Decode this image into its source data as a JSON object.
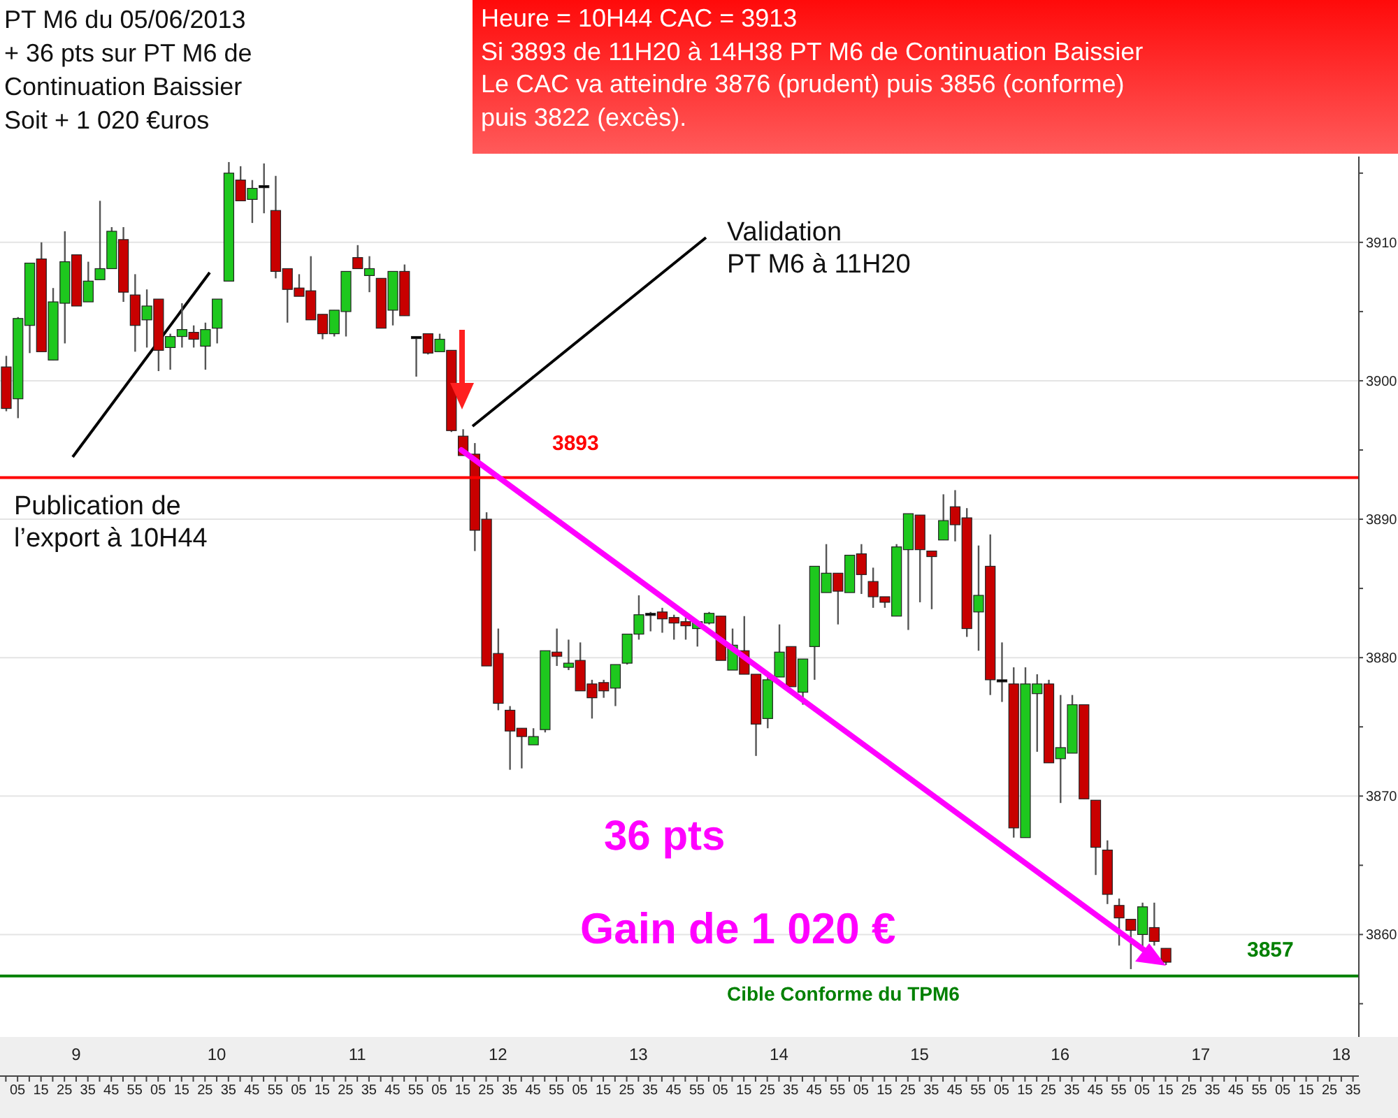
{
  "chart_data": {
    "type": "candlestick",
    "title": "PT M6 du 05/06/2013\n+ 36 pts sur PT M6 de\nContinuation Baissier\nSoit +  1 020 €uros",
    "subtitle": "Heure = 10H44  CAC = 3913\nSi 3893 de 11H20 à 14H38 PT M6 de Continuation Baissier\nLe CAC va atteindre 3876 (prudent) puis 3856 (conforme)\npuis 3822 (excès).",
    "categories": [
      null,
      "05",
      null,
      "15",
      null,
      "25",
      null,
      "35",
      null,
      "45",
      null,
      "55",
      null,
      "05",
      null,
      "15",
      null,
      "25",
      null,
      "35",
      null,
      "45",
      null,
      "55",
      null,
      "05",
      null,
      "15",
      null,
      "25",
      null,
      "35",
      null,
      "45",
      null,
      "55",
      null,
      "05",
      null,
      "15",
      null,
      "25",
      null,
      "35",
      null,
      "45",
      null,
      "55",
      null,
      "05",
      null,
      "15",
      null,
      "25",
      null,
      "35",
      null,
      "45",
      null,
      "55",
      null,
      "05",
      null,
      "15",
      null,
      "25",
      null,
      "35",
      null,
      "45",
      null,
      "55",
      null,
      "05",
      null,
      "15",
      null,
      "25",
      null,
      "35",
      null,
      "45",
      null,
      "55",
      null,
      "05",
      null,
      "15",
      null,
      "25",
      null,
      "35",
      null,
      "45",
      null,
      "55",
      null,
      "05",
      null,
      "15",
      null,
      "25",
      null,
      "35",
      null,
      "45",
      null,
      "55",
      null,
      "05",
      null,
      "15",
      null,
      "25",
      null,
      "35"
    ],
    "ohlc": [
      [
        3901.0,
        3901.8,
        3897.8,
        3898.0
      ],
      [
        3898.7,
        3904.6,
        3897.3,
        3904.5
      ],
      [
        3904.0,
        3908.5,
        3902.0,
        3908.5
      ],
      [
        3908.8,
        3910.0,
        3902.1,
        3902.1
      ],
      [
        3901.5,
        3906.7,
        3901.5,
        3905.7
      ],
      [
        3905.6,
        3910.8,
        3902.7,
        3908.6
      ],
      [
        3909.1,
        3909.1,
        3905.4,
        3905.4
      ],
      [
        3905.7,
        3908.6,
        3905.7,
        3907.2
      ],
      [
        3907.3,
        3913.0,
        3907.3,
        3908.1
      ],
      [
        3908.1,
        3911.1,
        3908.1,
        3910.8
      ],
      [
        3910.2,
        3911.1,
        3905.7,
        3906.4
      ],
      [
        3906.2,
        3907.7,
        3902.1,
        3904.0
      ],
      [
        3904.4,
        3906.6,
        3902.4,
        3905.4
      ],
      [
        3905.9,
        3905.9,
        3900.7,
        3902.2
      ],
      [
        3902.4,
        3903.4,
        3900.8,
        3903.2
      ],
      [
        3903.2,
        3905.6,
        3902.4,
        3903.7
      ],
      [
        3903.5,
        3904.0,
        3902.4,
        3903.0
      ],
      [
        3902.5,
        3904.2,
        3900.8,
        3903.7
      ],
      [
        3903.8,
        3905.9,
        3902.7,
        3905.9
      ],
      [
        3907.2,
        3915.8,
        3907.2,
        3915.0
      ],
      [
        3914.5,
        3915.5,
        3913.0,
        3913.0
      ],
      [
        3913.1,
        3914.5,
        3911.4,
        3913.9
      ],
      [
        3914.1,
        3915.7,
        3912.1,
        3914.1
      ],
      [
        3912.3,
        3914.8,
        3907.4,
        3907.9
      ],
      [
        3908.1,
        3908.1,
        3904.2,
        3906.6
      ],
      [
        3906.7,
        3907.7,
        3906.1,
        3906.1
      ],
      [
        3906.5,
        3909.0,
        3904.4,
        3904.4
      ],
      [
        3904.8,
        3904.8,
        3903.0,
        3903.4
      ],
      [
        3903.4,
        3905.1,
        3903.2,
        3905.1
      ],
      [
        3905.0,
        3907.9,
        3903.2,
        3907.9
      ],
      [
        3908.9,
        3909.8,
        3908.1,
        3908.1
      ],
      [
        3907.6,
        3909.0,
        3906.4,
        3908.1
      ],
      [
        3907.4,
        3907.4,
        3903.8,
        3903.8
      ],
      [
        3905.1,
        3907.9,
        3904.0,
        3907.9
      ],
      [
        3907.9,
        3908.4,
        3904.7,
        3904.7
      ],
      [
        3903.2,
        3903.2,
        3900.3,
        3903.2
      ],
      [
        3903.4,
        3903.4,
        3901.9,
        3902.0
      ],
      [
        3902.1,
        3903.4,
        3902.1,
        3903.0
      ],
      [
        3902.2,
        3902.2,
        3896.3,
        3896.4
      ],
      [
        3896.0,
        3896.5,
        3894.6,
        3894.6
      ],
      [
        3894.7,
        3895.5,
        3887.7,
        3889.2
      ],
      [
        3890.0,
        3890.5,
        3879.4,
        3879.4
      ],
      [
        3880.3,
        3882.1,
        3876.2,
        3876.7
      ],
      [
        3876.2,
        3876.5,
        3871.9,
        3874.7
      ],
      [
        3874.9,
        3874.9,
        3872.0,
        3874.3
      ],
      [
        3873.7,
        3874.9,
        3873.7,
        3874.3
      ],
      [
        3874.8,
        3880.5,
        3874.6,
        3880.5
      ],
      [
        3880.4,
        3882.1,
        3879.4,
        3880.1
      ],
      [
        3879.3,
        3881.3,
        3879.1,
        3879.6
      ],
      [
        3879.8,
        3881.1,
        3877.6,
        3877.6
      ],
      [
        3878.1,
        3878.4,
        3875.6,
        3877.1
      ],
      [
        3878.2,
        3878.4,
        3877.1,
        3877.6
      ],
      [
        3877.8,
        3879.5,
        3876.5,
        3879.5
      ],
      [
        3879.6,
        3881.7,
        3879.5,
        3881.7
      ],
      [
        3881.7,
        3884.5,
        3881.3,
        3883.1
      ],
      [
        3883.2,
        3883.3,
        3881.9,
        3883.2
      ],
      [
        3883.3,
        3883.6,
        3881.8,
        3882.8
      ],
      [
        3882.9,
        3883.1,
        3881.3,
        3882.5
      ],
      [
        3882.6,
        3882.9,
        3881.3,
        3882.3
      ],
      [
        3882.1,
        3882.6,
        3880.8,
        3882.6
      ],
      [
        3882.5,
        3883.3,
        3882.4,
        3883.2
      ],
      [
        3883.0,
        3883.0,
        3879.8,
        3879.8
      ],
      [
        3879.1,
        3882.1,
        3879.1,
        3880.9
      ],
      [
        3880.5,
        3883.0,
        3878.8,
        3878.8
      ],
      [
        3878.8,
        3878.8,
        3872.9,
        3875.2
      ],
      [
        3875.6,
        3878.8,
        3874.9,
        3878.4
      ],
      [
        3878.6,
        3882.4,
        3878.6,
        3880.4
      ],
      [
        3880.8,
        3880.8,
        3877.9,
        3877.9
      ],
      [
        3877.5,
        3879.9,
        3876.6,
        3879.9
      ],
      [
        3880.8,
        3886.6,
        3878.4,
        3886.6
      ],
      [
        3884.7,
        3888.2,
        3884.7,
        3886.1
      ],
      [
        3886.1,
        3886.1,
        3882.4,
        3884.8
      ],
      [
        3884.7,
        3887.4,
        3884.7,
        3887.4
      ],
      [
        3887.5,
        3888.2,
        3884.6,
        3886.0
      ],
      [
        3885.5,
        3886.5,
        3883.6,
        3884.4
      ],
      [
        3884.4,
        3884.4,
        3883.6,
        3884.0
      ],
      [
        3883.0,
        3888.2,
        3883.0,
        3888.0
      ],
      [
        3887.8,
        3890.4,
        3882.0,
        3890.4
      ],
      [
        3890.3,
        3890.3,
        3884.0,
        3887.8
      ],
      [
        3887.7,
        3887.7,
        3883.5,
        3887.3
      ],
      [
        3888.5,
        3891.8,
        3888.5,
        3889.9
      ],
      [
        3890.9,
        3892.1,
        3888.4,
        3889.6
      ],
      [
        3890.1,
        3890.8,
        3881.5,
        3882.1
      ],
      [
        3883.3,
        3888.1,
        3880.5,
        3884.5
      ],
      [
        3886.6,
        3888.9,
        3877.3,
        3878.4
      ],
      [
        3878.4,
        3881.1,
        3876.8,
        3878.4
      ],
      [
        3878.1,
        3879.3,
        3867.0,
        3867.7
      ],
      [
        3867.0,
        3879.3,
        3867.0,
        3878.1
      ],
      [
        3877.4,
        3878.8,
        3873.2,
        3878.1
      ],
      [
        3878.1,
        3878.4,
        3872.4,
        3872.4
      ],
      [
        3872.7,
        3877.3,
        3869.5,
        3873.5
      ],
      [
        3873.1,
        3877.3,
        3873.1,
        3876.6
      ],
      [
        3876.6,
        3876.6,
        3869.8,
        3869.8
      ],
      [
        3869.7,
        3869.7,
        3864.3,
        3866.3
      ],
      [
        3866.1,
        3866.8,
        3862.2,
        3862.9
      ],
      [
        3862.1,
        3862.6,
        3859.2,
        3861.2
      ],
      [
        3861.1,
        3861.1,
        3857.5,
        3860.3
      ],
      [
        3860.0,
        3862.3,
        3859.0,
        3862.0
      ],
      [
        3860.5,
        3862.3,
        3859.2,
        3859.5
      ],
      [
        3859.0,
        3859.0,
        3857.8,
        3858.0
      ],
      null,
      null,
      null,
      null,
      null,
      null,
      null,
      null,
      null,
      null,
      null,
      null,
      null,
      null,
      null,
      null
    ],
    "colors": [
      "#c80000",
      "#1ec81e",
      "#1ec81e",
      "#c80000",
      "#1ec81e",
      "#1ec81e",
      "#c80000",
      "#1ec81e",
      "#1ec81e",
      "#1ec81e",
      "#c80000",
      "#c80000",
      "#1ec81e",
      "#c80000",
      "#1ec81e",
      "#1ec81e",
      "#c80000",
      "#1ec81e",
      "#1ec81e",
      "#1ec81e",
      "#c80000",
      "#1ec81e",
      "#000000",
      "#c80000",
      "#c80000",
      "#c80000",
      "#c80000",
      "#c80000",
      "#1ec81e",
      "#1ec81e",
      "#c80000",
      "#1ec81e",
      "#c80000",
      "#1ec81e",
      "#c80000",
      "#000000",
      "#c80000",
      "#1ec81e",
      "#c80000",
      "#c80000",
      "#c80000",
      "#c80000",
      "#c80000",
      "#c80000",
      "#c80000",
      "#1ec81e",
      "#1ec81e",
      "#c80000",
      "#1ec81e",
      "#c80000",
      "#c80000",
      "#c80000",
      "#1ec81e",
      "#1ec81e",
      "#1ec81e",
      "#000000",
      "#c80000",
      "#c80000",
      "#c80000",
      "#1ec81e",
      "#1ec81e",
      "#c80000",
      "#1ec81e",
      "#c80000",
      "#c80000",
      "#1ec81e",
      "#1ec81e",
      "#c80000",
      "#1ec81e",
      "#1ec81e",
      "#1ec81e",
      "#c80000",
      "#1ec81e",
      "#c80000",
      "#c80000",
      "#c80000",
      "#1ec81e",
      "#1ec81e",
      "#c80000",
      "#c80000",
      "#1ec81e",
      "#c80000",
      "#c80000",
      "#1ec81e",
      "#c80000",
      "#000000",
      "#c80000",
      "#1ec81e",
      "#1ec81e",
      "#c80000",
      "#1ec81e",
      "#1ec81e",
      "#c80000",
      "#c80000",
      "#c80000",
      "#c80000",
      "#c80000",
      "#1ec81e",
      "#c80000",
      "#c80000",
      null,
      null,
      null,
      null,
      null,
      null,
      null,
      null,
      null,
      null,
      null,
      null,
      null,
      null,
      null,
      null
    ],
    "ylim": [
      3852.6,
      3916.2
    ],
    "yticks": [
      {
        "value": 3855,
        "label": null
      },
      3860,
      {
        "value": 3865,
        "label": null
      },
      3870,
      {
        "value": 3875,
        "label": null
      },
      3880,
      {
        "value": 3885,
        "label": null
      },
      3890,
      {
        "value": 3895,
        "label": null
      },
      3900,
      {
        "value": 3905,
        "label": null
      },
      3910,
      {
        "value": 3915,
        "label": null
      }
    ],
    "grid": "y",
    "ref_lines": [
      {
        "axis": "y",
        "value": 3893,
        "label": "3893",
        "color": "#ff0000"
      },
      {
        "axis": "y",
        "value": 3857,
        "label": "3857",
        "color": "#008000"
      }
    ],
    "annotations": [
      "Publication de\nl’export à 10H44",
      "Validation\nPT M6 à 11H20",
      "36 pts",
      "Gain de 1 020 €",
      "Cible Conforme du TPM6",
      "9",
      "10",
      "11",
      "12",
      "13",
      "14",
      "15",
      "16",
      "17",
      "18"
    ]
  }
}
